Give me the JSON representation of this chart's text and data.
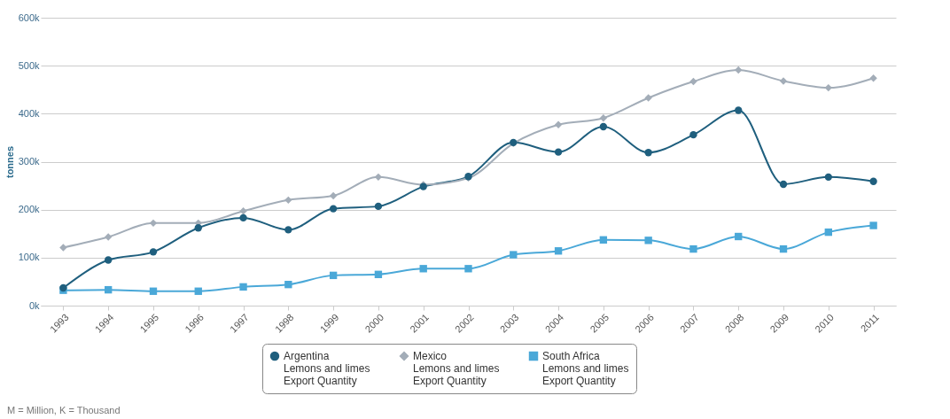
{
  "chart_data": {
    "type": "line",
    "ylabel": "tonnes",
    "categories": [
      "1993",
      "1994",
      "1995",
      "1996",
      "1997",
      "1998",
      "1999",
      "2000",
      "2001",
      "2002",
      "2003",
      "2004",
      "2005",
      "2006",
      "2007",
      "2008",
      "2009",
      "2010",
      "2011"
    ],
    "series": [
      {
        "name": "Argentina\nLemons and limes\nExport Quantity",
        "color": "#1f5f7e",
        "marker": "circle",
        "values": [
          37000,
          95000,
          112000,
          162000,
          183000,
          158000,
          202000,
          207000,
          248000,
          269000,
          340000,
          320000,
          373000,
          319000,
          356000,
          407000,
          253000,
          268000,
          259000
        ]
      },
      {
        "name": "Mexico\nLemons and limes\nExport Quantity",
        "color": "#a3adb8",
        "marker": "diamond",
        "values": [
          121000,
          143000,
          172000,
          172000,
          197000,
          220000,
          229000,
          268000,
          252000,
          266000,
          338000,
          377000,
          391000,
          433000,
          467000,
          491000,
          468000,
          454000,
          474000
        ]
      },
      {
        "name": "South Africa\nLemons and limes\nExport Quantity",
        "color": "#4aa8d8",
        "marker": "square",
        "values": [
          32000,
          33000,
          30000,
          30000,
          39000,
          44000,
          63000,
          65000,
          77000,
          77000,
          106000,
          114000,
          137000,
          136000,
          118000,
          144000,
          118000,
          153000,
          167000
        ]
      }
    ],
    "ylim": [
      0,
      600000
    ],
    "yticks": [
      {
        "value": 0,
        "label": "0k"
      },
      {
        "value": 100000,
        "label": "100k"
      },
      {
        "value": 200000,
        "label": "200k"
      },
      {
        "value": 300000,
        "label": "300k"
      },
      {
        "value": 400000,
        "label": "400k"
      },
      {
        "value": 500000,
        "label": "500k"
      },
      {
        "value": 600000,
        "label": "600k"
      }
    ],
    "grid": "y",
    "legend": "bottom",
    "line_style": "solid",
    "annotations": [
      "M = Million, K = Thousand"
    ]
  }
}
